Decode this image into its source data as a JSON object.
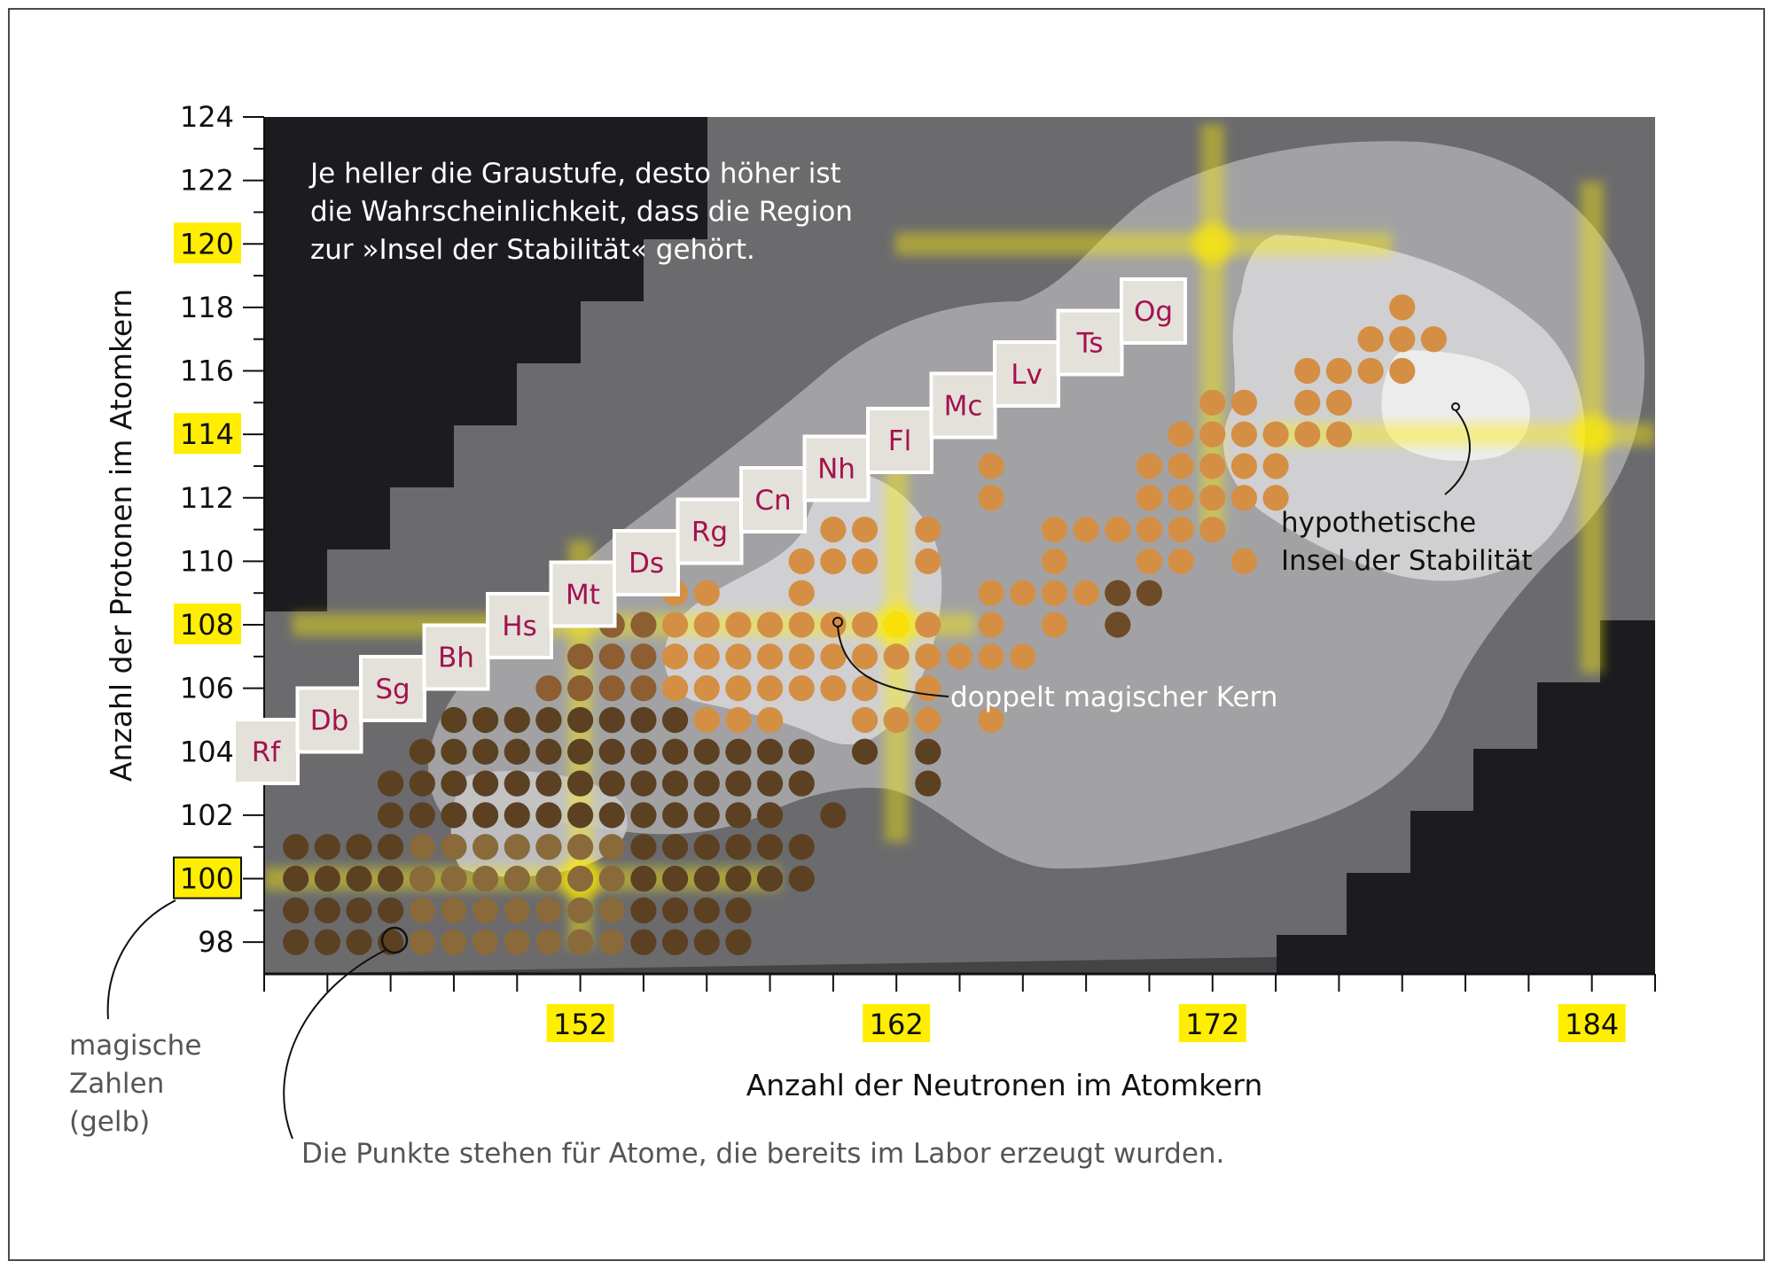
{
  "chart_data": {
    "type": "scatter",
    "xlabel": "Anzahl der Neutronen im Atomkern",
    "ylabel": "Anzahl der Protonen im Atomkern",
    "xlim": [
      142,
      186
    ],
    "ylim": [
      97,
      124
    ],
    "x_ticks_labeled": [
      152,
      162,
      172,
      184
    ],
    "y_ticks_labeled": [
      98,
      100,
      102,
      104,
      106,
      108,
      110,
      112,
      114,
      116,
      118,
      120,
      122,
      124
    ],
    "magic_numbers": {
      "protons": [
        100,
        108,
        114,
        120
      ],
      "neutrons": [
        152,
        162,
        172,
        184
      ]
    },
    "colors": {
      "magic_highlight": "#ffee00",
      "element_symbol": "#a3124f",
      "atom_dot_light": "#d48f45",
      "atom_dot_dark": "#5c4022",
      "background_darkest": "#1c1b1f",
      "background_dark": "#444447",
      "background_mid": "#6b6b6d",
      "background_light": "#a2a2a4",
      "background_lighter": "#d0d0d2",
      "background_lightest": "#ececed"
    },
    "elements": [
      {
        "symbol": "Rf",
        "z": 104
      },
      {
        "symbol": "Db",
        "z": 105
      },
      {
        "symbol": "Sg",
        "z": 106
      },
      {
        "symbol": "Bh",
        "z": 107
      },
      {
        "symbol": "Hs",
        "z": 108
      },
      {
        "symbol": "Mt",
        "z": 109
      },
      {
        "symbol": "Ds",
        "z": 110
      },
      {
        "symbol": "Rg",
        "z": 111
      },
      {
        "symbol": "Cn",
        "z": 112
      },
      {
        "symbol": "Nh",
        "z": 113
      },
      {
        "symbol": "Fl",
        "z": 114
      },
      {
        "symbol": "Mc",
        "z": 115
      },
      {
        "symbol": "Lv",
        "z": 116
      },
      {
        "symbol": "Ts",
        "z": 117
      },
      {
        "symbol": "Og",
        "z": 118
      }
    ],
    "atoms": [
      {
        "z": 98,
        "n": [
          143,
          144,
          145,
          146,
          147,
          148,
          149,
          150,
          151,
          152,
          153,
          154,
          155,
          156,
          157
        ]
      },
      {
        "z": 99,
        "n": [
          143,
          144,
          145,
          146,
          147,
          148,
          149,
          150,
          151,
          152,
          153,
          154,
          155,
          156,
          157
        ]
      },
      {
        "z": 100,
        "n": [
          143,
          144,
          145,
          146,
          147,
          148,
          149,
          150,
          151,
          152,
          153,
          154,
          155,
          156,
          157,
          158,
          159
        ]
      },
      {
        "z": 101,
        "n": [
          143,
          144,
          145,
          146,
          147,
          148,
          149,
          150,
          151,
          152,
          153,
          154,
          155,
          156,
          157,
          158,
          159
        ]
      },
      {
        "z": 102,
        "n": [
          146,
          147,
          148,
          149,
          150,
          151,
          152,
          153,
          154,
          155,
          156,
          157,
          158,
          160
        ]
      },
      {
        "z": 103,
        "n": [
          146,
          147,
          148,
          149,
          150,
          151,
          152,
          153,
          154,
          155,
          156,
          157,
          158,
          159,
          163
        ]
      },
      {
        "z": 104,
        "n": [
          147,
          148,
          149,
          150,
          151,
          152,
          153,
          154,
          155,
          156,
          157,
          158,
          159,
          161,
          163
        ]
      },
      {
        "z": 105,
        "n": [
          148,
          149,
          150,
          151,
          152,
          153,
          154,
          155,
          156,
          157,
          158,
          161,
          162,
          163,
          165
        ]
      },
      {
        "z": 106,
        "n": [
          151,
          152,
          153,
          154,
          155,
          156,
          157,
          158,
          159,
          160,
          161,
          163
        ]
      },
      {
        "z": 107,
        "n": [
          152,
          153,
          154,
          155,
          156,
          157,
          158,
          159,
          160,
          161,
          162,
          163,
          164,
          165,
          166
        ]
      },
      {
        "z": 108,
        "n": [
          153,
          154,
          155,
          156,
          157,
          158,
          159,
          160,
          161,
          162,
          163,
          165,
          167,
          169
        ]
      },
      {
        "z": 109,
        "n": [
          155,
          156,
          159,
          165,
          166,
          167,
          168,
          169,
          170
        ]
      },
      {
        "z": 110,
        "n": [
          159,
          160,
          161,
          163,
          167,
          170,
          171,
          173
        ]
      },
      {
        "z": 111,
        "n": [
          160,
          161,
          163,
          167,
          168,
          169,
          170,
          171,
          172
        ]
      },
      {
        "z": 112,
        "n": [
          165,
          170,
          171,
          172,
          173,
          174
        ]
      },
      {
        "z": 113,
        "n": [
          165,
          170,
          171,
          172,
          173,
          174
        ]
      },
      {
        "z": 114,
        "n": [
          171,
          172,
          173,
          174,
          175,
          176
        ]
      },
      {
        "z": 115,
        "n": [
          172,
          173,
          175,
          176
        ]
      },
      {
        "z": 116,
        "n": [
          175,
          176,
          177,
          178
        ]
      },
      {
        "z": 117,
        "n": [
          177,
          178,
          179
        ]
      },
      {
        "z": 118,
        "n": [
          178
        ]
      }
    ],
    "doubly_magic": {
      "n": 162,
      "z": 108
    },
    "island_center": {
      "n": 184,
      "z": 114
    },
    "annotations": {
      "info": [
        "Je heller die Graustufe, desto höher ist",
        "die Wahrscheinlichkeit, dass die Region",
        "zur »Insel der Stabilität« gehört."
      ],
      "doubly_magic_label": "doppelt magischer Kern",
      "island_label": [
        "hypothetische",
        "Insel der Stabilität"
      ],
      "magic_label": [
        "magische",
        "Zahlen",
        "(gelb)"
      ],
      "dots_label": "Die Punkte stehen für Atome, die bereits im Labor erzeugt wurden."
    }
  }
}
